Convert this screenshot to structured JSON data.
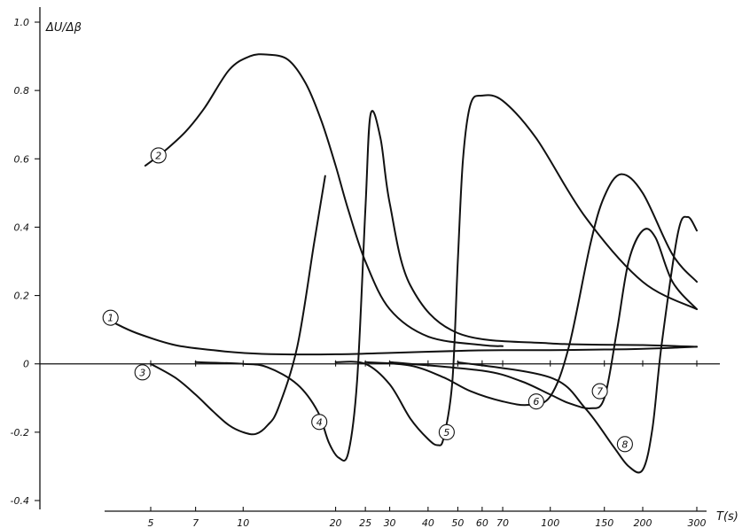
{
  "chart_data": {
    "type": "line",
    "ylabel": "ΔU/Δβ",
    "xlabel": "T(s)",
    "x_scale": "log",
    "xlim": [
      3.5,
      310
    ],
    "ylim": [
      -0.4,
      1.0
    ],
    "y_ticks": [
      {
        "value": 1.0,
        "label": "1.0"
      },
      {
        "value": 0.8,
        "label": "0.8"
      },
      {
        "value": 0.6,
        "label": "0.6"
      },
      {
        "value": 0.4,
        "label": "0.4"
      },
      {
        "value": 0.2,
        "label": "0.2"
      },
      {
        "value": 0.0,
        "label": "0"
      },
      {
        "value": -0.2,
        "label": "-0.2"
      },
      {
        "value": -0.4,
        "label": "-0.4"
      }
    ],
    "x_ticks": [
      {
        "value": 5,
        "label": "5"
      },
      {
        "value": 7,
        "label": "7"
      },
      {
        "value": 10,
        "label": "10"
      },
      {
        "value": 20,
        "label": "20"
      },
      {
        "value": 25,
        "label": "25"
      },
      {
        "value": 30,
        "label": "30"
      },
      {
        "value": 40,
        "label": "40"
      },
      {
        "value": 50,
        "label": "50"
      },
      {
        "value": 60,
        "label": "60"
      },
      {
        "value": 70,
        "label": "70"
      },
      {
        "value": 100,
        "label": "100"
      },
      {
        "value": 150,
        "label": "150"
      },
      {
        "value": 200,
        "label": "200"
      },
      {
        "value": 300,
        "label": "300"
      }
    ],
    "series": [
      {
        "name": "1",
        "label_at": [
          3.7,
          0.135
        ],
        "x": [
          3.8,
          4.5,
          6,
          8,
          10,
          13,
          20,
          30,
          50,
          70,
          100,
          150,
          200,
          250,
          300
        ],
        "y": [
          0.12,
          0.09,
          0.055,
          0.04,
          0.032,
          0.028,
          0.028,
          0.032,
          0.038,
          0.04,
          0.04,
          0.042,
          0.044,
          0.047,
          0.05
        ]
      },
      {
        "name": "2",
        "label_at": [
          5.3,
          0.61
        ],
        "x": [
          4.8,
          5.5,
          6.5,
          7.5,
          9,
          10.5,
          12,
          14,
          16,
          18,
          20,
          22,
          25,
          30,
          40,
          60,
          70
        ],
        "y": [
          0.58,
          0.62,
          0.68,
          0.75,
          0.86,
          0.9,
          0.905,
          0.89,
          0.82,
          0.71,
          0.58,
          0.45,
          0.3,
          0.16,
          0.08,
          0.055,
          0.052
        ]
      },
      {
        "name": "3",
        "label_at": [
          4.7,
          -0.025
        ],
        "x": [
          5,
          6,
          7,
          8,
          9,
          10,
          11,
          12,
          13,
          15,
          17,
          18.5
        ],
        "y": [
          0.0,
          -0.04,
          -0.09,
          -0.14,
          -0.18,
          -0.2,
          -0.205,
          -0.18,
          -0.13,
          0.05,
          0.35,
          0.55
        ]
      },
      {
        "name": "4",
        "label_at": [
          17.7,
          -0.17
        ],
        "x": [
          7,
          10,
          12,
          15,
          17.5,
          19,
          20.5,
          22,
          23.5,
          25,
          26,
          28,
          30,
          35,
          50,
          100,
          200,
          300
        ],
        "y": [
          0.005,
          0.0,
          -0.01,
          -0.06,
          -0.14,
          -0.23,
          -0.275,
          -0.26,
          -0.05,
          0.45,
          0.73,
          0.66,
          0.47,
          0.23,
          0.09,
          0.06,
          0.055,
          0.05
        ]
      },
      {
        "name": "5",
        "label_at": [
          46,
          -0.2
        ],
        "x": [
          20,
          25,
          30,
          35,
          40,
          43,
          45,
          48,
          50,
          52,
          55,
          60,
          70,
          90,
          130,
          200,
          300
        ],
        "y": [
          0.005,
          0.0,
          -0.06,
          -0.16,
          -0.22,
          -0.238,
          -0.215,
          -0.05,
          0.3,
          0.6,
          0.76,
          0.785,
          0.77,
          0.66,
          0.43,
          0.24,
          0.16
        ]
      },
      {
        "name": "6",
        "label_at": [
          90,
          -0.11
        ],
        "x": [
          25,
          35,
          45,
          55,
          70,
          85,
          100,
          115,
          135,
          150,
          170,
          200,
          250,
          300
        ],
        "y": [
          0.005,
          -0.005,
          -0.04,
          -0.08,
          -0.11,
          -0.12,
          -0.095,
          0.05,
          0.35,
          0.49,
          0.555,
          0.5,
          0.32,
          0.24
        ]
      },
      {
        "name": "7",
        "label_at": [
          145,
          -0.08
        ],
        "x": [
          30,
          60,
          80,
          100,
          115,
          135,
          150,
          165,
          180,
          200,
          220,
          250,
          300
        ],
        "y": [
          0.005,
          -0.02,
          -0.05,
          -0.09,
          -0.115,
          -0.13,
          -0.1,
          0.1,
          0.3,
          0.39,
          0.37,
          0.24,
          0.16
        ]
      },
      {
        "name": "8",
        "label_at": [
          175,
          -0.235
        ],
        "x": [
          50,
          100,
          130,
          160,
          180,
          200,
          215,
          230,
          260,
          280,
          300
        ],
        "y": [
          0.005,
          -0.04,
          -0.13,
          -0.24,
          -0.3,
          -0.31,
          -0.19,
          0.05,
          0.38,
          0.43,
          0.39
        ]
      }
    ]
  }
}
